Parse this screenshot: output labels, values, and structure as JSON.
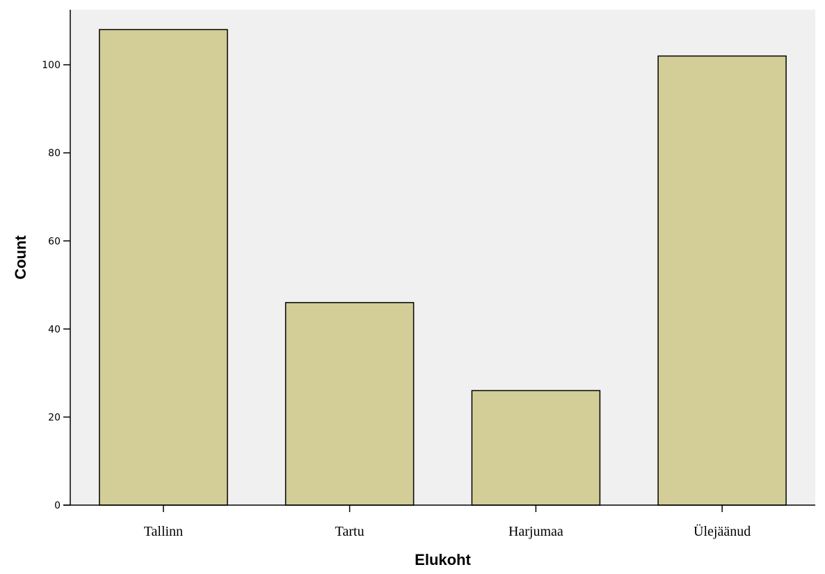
{
  "chart_data": {
    "type": "bar",
    "title": "",
    "xlabel": "Elukoht",
    "ylabel": "Count",
    "categories": [
      "Tallinn",
      "Tartu",
      "Harjumaa",
      "Ülejäänud"
    ],
    "values": [
      108,
      46,
      26,
      102
    ],
    "ylim": [
      0,
      112.5
    ],
    "yticks": [
      "0",
      "20",
      "40",
      "60",
      "80",
      "100"
    ],
    "grid": false,
    "legend": "none",
    "colors": {
      "plot_background": "#f0f0f0",
      "bar_fill": "#d3ce98",
      "bar_stroke": "#000000",
      "axis": "#000000"
    }
  }
}
